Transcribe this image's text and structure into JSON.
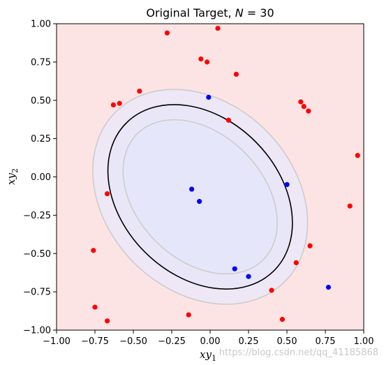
{
  "chart_data": {
    "type": "scatter",
    "title_prefix": "Original Target, ",
    "title_var": "N",
    "title_eq": " = 30",
    "xlabel_main": "xy",
    "xlabel_sub": "1",
    "ylabel_main": "xy",
    "ylabel_sub": "2",
    "xlim": [
      -1.0,
      1.0
    ],
    "ylim": [
      -1.0,
      1.0
    ],
    "xticks": [
      "−1.00",
      "−0.75",
      "−0.50",
      "−0.25",
      "0.00",
      "0.25",
      "0.50",
      "0.75",
      "1.00"
    ],
    "yticks": [
      "−1.00",
      "−0.75",
      "−0.50",
      "−0.25",
      "0.00",
      "0.25",
      "0.50",
      "0.75",
      "1.00"
    ],
    "grid": false,
    "colors": {
      "outside": "#fde4e4",
      "inside": "#e6e6fb",
      "red_points": "#ff0000",
      "blue_points": "#0000ff",
      "boundary": "#000000",
      "margin": "#cccccc"
    },
    "ellipse": {
      "center": [
        -0.065,
        -0.13
      ],
      "a": 0.68,
      "b": 0.51,
      "angle_deg": -45,
      "margin": 0.1
    },
    "red_points": [
      [
        -0.28,
        0.94
      ],
      [
        0.05,
        0.97
      ],
      [
        -0.06,
        0.77
      ],
      [
        -0.02,
        0.75
      ],
      [
        0.17,
        0.67
      ],
      [
        -0.46,
        0.56
      ],
      [
        -0.63,
        0.47
      ],
      [
        -0.59,
        0.48
      ],
      [
        0.12,
        0.37
      ],
      [
        0.59,
        0.49
      ],
      [
        0.61,
        0.46
      ],
      [
        0.64,
        0.43
      ],
      [
        0.96,
        0.14
      ],
      [
        -0.67,
        -0.11
      ],
      [
        0.91,
        -0.19
      ],
      [
        -0.76,
        -0.48
      ],
      [
        0.65,
        -0.45
      ],
      [
        0.56,
        -0.56
      ],
      [
        0.4,
        -0.74
      ],
      [
        -0.75,
        -0.85
      ],
      [
        -0.67,
        -0.94
      ],
      [
        -0.14,
        -0.9
      ],
      [
        0.47,
        -0.93
      ]
    ],
    "blue_points": [
      [
        -0.01,
        0.52
      ],
      [
        0.5,
        -0.05
      ],
      [
        -0.12,
        -0.08
      ],
      [
        -0.07,
        -0.16
      ],
      [
        0.16,
        -0.6
      ],
      [
        0.25,
        -0.65
      ],
      [
        0.77,
        -0.72
      ]
    ]
  },
  "watermark": "https://blog.csdn.net/qq_41185868"
}
